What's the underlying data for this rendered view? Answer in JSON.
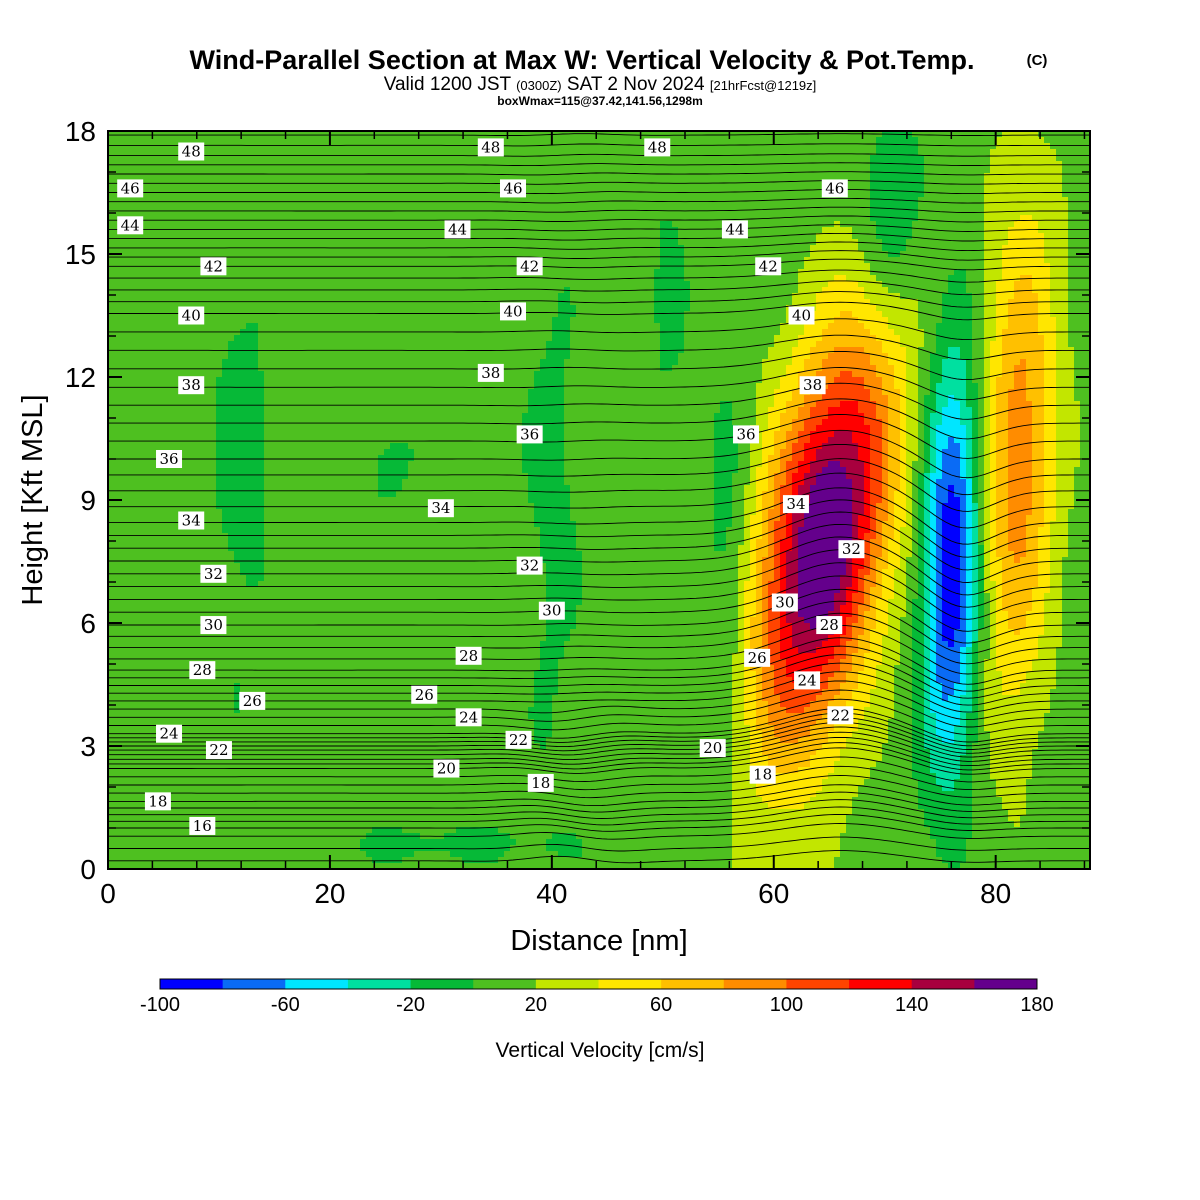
{
  "title": "Wind-Parallel Section at Max W: Vertical Velocity & Pot.Temp.",
  "copyright_mark": "(C)",
  "subtitle": {
    "valid_prefix": "Valid 1200 JST",
    "utc_time": "(0300Z)",
    "date": "SAT 2 Nov 2024",
    "forecast_info": "[21hrFcst@1219z]"
  },
  "box_info": "boxWmax=115@37.42,141.56,1298m",
  "chart_data": {
    "type": "heatmap",
    "xlabel": "Distance [nm]",
    "ylabel": "Height [Kft MSL]",
    "xlim": [
      0,
      88.5
    ],
    "ylim": [
      0,
      18
    ],
    "x_ticks": [
      0,
      20,
      40,
      60,
      80
    ],
    "y_ticks": [
      0,
      3,
      6,
      9,
      12,
      15,
      18
    ],
    "grid": false,
    "fill_variable": "Vertical Velocity [cm/s]",
    "contour_variable": "Potential Temperature",
    "colorbar": {
      "title": "Vertical Velocity [cm/s]",
      "levels": [
        -100,
        -80,
        -60,
        -40,
        -20,
        0,
        20,
        40,
        60,
        80,
        100,
        120,
        140,
        160,
        180
      ],
      "colors": [
        "#0000ff",
        "#0a6bf5",
        "#00e6ff",
        "#00e0a0",
        "#06b937",
        "#4ec020",
        "#c2e600",
        "#ffe600",
        "#ffc000",
        "#ff8c00",
        "#ff4400",
        "#ff0000",
        "#a8003e",
        "#64008c"
      ],
      "tick_labels": [
        "-100",
        "-60",
        "-20",
        "20",
        "60",
        "100",
        "140",
        "180"
      ],
      "tick_values": [
        -100,
        -60,
        -20,
        20,
        60,
        100,
        140,
        180
      ]
    },
    "background_value": 10,
    "features": [
      {
        "xc": 64.5,
        "yc": 8.0,
        "sx": 5.5,
        "sy": 5.0,
        "amp": 178,
        "tilt": 0.55
      },
      {
        "xc": 82.0,
        "yc": 10.0,
        "sx": 3.4,
        "sy": 6.0,
        "amp": 82,
        "tilt": 0.1
      },
      {
        "xc": 76.0,
        "yc": 7.5,
        "sx": 2.6,
        "sy": 5.0,
        "amp": -112,
        "tilt": 0.05
      },
      {
        "xc": 70.5,
        "yc": 16.0,
        "sx": 2.8,
        "sy": 2.5,
        "amp": -35,
        "tilt": 0
      },
      {
        "xc": 56.0,
        "yc": 7.0,
        "sx": 2.2,
        "sy": 4.5,
        "amp": -28,
        "tilt": 0
      },
      {
        "xc": 12.0,
        "yc": 10.0,
        "sx": 3.0,
        "sy": 6.5,
        "amp": -16,
        "tilt": 0
      },
      {
        "xc": 25.0,
        "yc": 10.0,
        "sx": 3.5,
        "sy": 2.0,
        "amp": -14,
        "tilt": 0
      },
      {
        "xc": 40.0,
        "yc": 9.0,
        "sx": 3.0,
        "sy": 8.0,
        "amp": -14,
        "tilt": 0
      },
      {
        "xc": 50.5,
        "yc": 14.0,
        "sx": 2.0,
        "sy": 4.0,
        "amp": -13,
        "tilt": 0
      },
      {
        "xc": 30.0,
        "yc": 0.6,
        "sx": 12.0,
        "sy": 0.6,
        "amp": -14,
        "tilt": 0
      }
    ],
    "theta_contours": {
      "levels": [
        16,
        18,
        20,
        22,
        24,
        26,
        28,
        30,
        32,
        34,
        36,
        38,
        40,
        42,
        44,
        46,
        48
      ],
      "base_height_kft": [
        1.0,
        1.65,
        2.45,
        2.9,
        3.3,
        4.1,
        4.85,
        5.95,
        7.2,
        8.45,
        10.0,
        11.75,
        13.55,
        14.7,
        15.6,
        16.5,
        17.4
      ],
      "labels": [
        {
          "text": "48",
          "x": 7.5,
          "y": 17.5
        },
        {
          "text": "48",
          "x": 34.5,
          "y": 17.6
        },
        {
          "text": "48",
          "x": 49.5,
          "y": 17.6
        },
        {
          "text": "46",
          "x": 2.0,
          "y": 16.6
        },
        {
          "text": "46",
          "x": 36.5,
          "y": 16.6
        },
        {
          "text": "46",
          "x": 65.5,
          "y": 16.6
        },
        {
          "text": "44",
          "x": 2.0,
          "y": 15.7
        },
        {
          "text": "44",
          "x": 31.5,
          "y": 15.6
        },
        {
          "text": "44",
          "x": 56.5,
          "y": 15.6
        },
        {
          "text": "42",
          "x": 9.5,
          "y": 14.7
        },
        {
          "text": "42",
          "x": 38.0,
          "y": 14.7
        },
        {
          "text": "42",
          "x": 59.5,
          "y": 14.7
        },
        {
          "text": "40",
          "x": 7.5,
          "y": 13.5
        },
        {
          "text": "40",
          "x": 36.5,
          "y": 13.6
        },
        {
          "text": "40",
          "x": 62.5,
          "y": 13.5
        },
        {
          "text": "38",
          "x": 7.5,
          "y": 11.8
        },
        {
          "text": "38",
          "x": 34.5,
          "y": 12.1
        },
        {
          "text": "38",
          "x": 63.5,
          "y": 11.8
        },
        {
          "text": "36",
          "x": 5.5,
          "y": 10.0
        },
        {
          "text": "36",
          "x": 38.0,
          "y": 10.6
        },
        {
          "text": "36",
          "x": 57.5,
          "y": 10.6
        },
        {
          "text": "34",
          "x": 7.5,
          "y": 8.5
        },
        {
          "text": "34",
          "x": 30.0,
          "y": 8.8
        },
        {
          "text": "34",
          "x": 62.0,
          "y": 8.9
        },
        {
          "text": "32",
          "x": 9.5,
          "y": 7.2
        },
        {
          "text": "32",
          "x": 38.0,
          "y": 7.4
        },
        {
          "text": "32",
          "x": 67.0,
          "y": 7.8
        },
        {
          "text": "30",
          "x": 9.5,
          "y": 5.95
        },
        {
          "text": "30",
          "x": 40.0,
          "y": 6.3
        },
        {
          "text": "30",
          "x": 61.0,
          "y": 6.5
        },
        {
          "text": "28",
          "x": 8.5,
          "y": 4.85
        },
        {
          "text": "28",
          "x": 32.5,
          "y": 5.2
        },
        {
          "text": "28",
          "x": 65.0,
          "y": 5.95
        },
        {
          "text": "26",
          "x": 13.0,
          "y": 4.1
        },
        {
          "text": "26",
          "x": 28.5,
          "y": 4.25
        },
        {
          "text": "26",
          "x": 58.5,
          "y": 5.15
        },
        {
          "text": "24",
          "x": 5.5,
          "y": 3.3
        },
        {
          "text": "24",
          "x": 32.5,
          "y": 3.7
        },
        {
          "text": "24",
          "x": 63.0,
          "y": 4.6
        },
        {
          "text": "22",
          "x": 10.0,
          "y": 2.9
        },
        {
          "text": "22",
          "x": 37.0,
          "y": 3.15
        },
        {
          "text": "22",
          "x": 66.0,
          "y": 3.75
        },
        {
          "text": "20",
          "x": 30.5,
          "y": 2.45
        },
        {
          "text": "20",
          "x": 54.5,
          "y": 2.95
        },
        {
          "text": "18",
          "x": 4.5,
          "y": 1.65
        },
        {
          "text": "18",
          "x": 39.0,
          "y": 2.1
        },
        {
          "text": "18",
          "x": 59.0,
          "y": 2.3
        },
        {
          "text": "16",
          "x": 8.5,
          "y": 1.05
        }
      ]
    }
  }
}
